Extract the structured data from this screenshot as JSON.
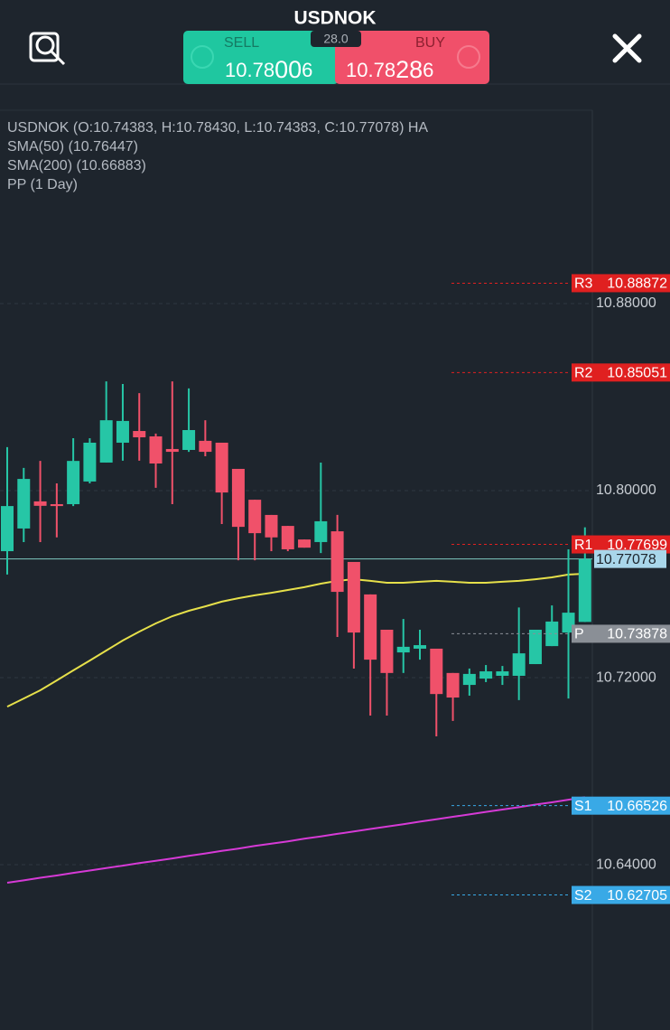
{
  "header": {
    "title": "USDNOK",
    "spread": "28.0",
    "sell": {
      "label": "SELL",
      "price_main": "10.78",
      "price_big": "00",
      "price_pip": "6"
    },
    "buy": {
      "label": "BUY",
      "price_main": "10.78",
      "price_big": "28",
      "price_pip": "6"
    }
  },
  "chart": {
    "type": "candlestick",
    "legend": [
      "USDNOK (O:10.74383, H:10.78430, L:10.74383, C:10.77078) HA",
      "SMA(50) (10.76447)",
      "SMA(200) (10.66883)",
      "PP (1 Day)"
    ],
    "up_color": "#26c6a6",
    "down_color": "#f0516a",
    "grid": true,
    "ylim": [
      10.5693,
      10.9627
    ],
    "yticks": [
      {
        "value": 10.88,
        "label": "10.88000"
      },
      {
        "value": 10.8,
        "label": "10.80000"
      },
      {
        "value": 10.72,
        "label": "10.72000"
      },
      {
        "value": 10.64,
        "label": "10.64000"
      }
    ],
    "candles": [
      {
        "open": 10.7741,
        "high": 10.8186,
        "low": 10.7641,
        "close": 10.7934
      },
      {
        "open": 10.7838,
        "high": 10.8097,
        "low": 10.778,
        "close": 10.805
      },
      {
        "open": 10.7954,
        "high": 10.8127,
        "low": 10.778,
        "close": 10.7935
      },
      {
        "open": 10.7942,
        "high": 10.8031,
        "low": 10.78,
        "close": 10.7934
      },
      {
        "open": 10.7942,
        "high": 10.8224,
        "low": 10.7934,
        "close": 10.8127
      },
      {
        "open": 10.8039,
        "high": 10.8224,
        "low": 10.8031,
        "close": 10.8205
      },
      {
        "open": 10.812,
        "high": 10.8467,
        "low": 10.812,
        "close": 10.8301
      },
      {
        "open": 10.8205,
        "high": 10.8456,
        "low": 10.8128,
        "close": 10.8298
      },
      {
        "open": 10.8255,
        "high": 10.8417,
        "low": 10.8128,
        "close": 10.8228
      },
      {
        "open": 10.8232,
        "high": 10.8244,
        "low": 10.8012,
        "close": 10.8116
      },
      {
        "open": 10.8178,
        "high": 10.8467,
        "low": 10.7942,
        "close": 10.8166
      },
      {
        "open": 10.8174,
        "high": 10.8437,
        "low": 10.8166,
        "close": 10.8259
      },
      {
        "open": 10.8213,
        "high": 10.8301,
        "low": 10.8147,
        "close": 10.8166
      },
      {
        "open": 10.8205,
        "high": 10.8205,
        "low": 10.7857,
        "close": 10.7992
      },
      {
        "open": 10.8093,
        "high": 10.8093,
        "low": 10.7702,
        "close": 10.7845
      },
      {
        "open": 10.7961,
        "high": 10.7961,
        "low": 10.7702,
        "close": 10.7818
      },
      {
        "open": 10.7896,
        "high": 10.7896,
        "low": 10.7741,
        "close": 10.78
      },
      {
        "open": 10.7849,
        "high": 10.7849,
        "low": 10.7741,
        "close": 10.7749
      },
      {
        "open": 10.7791,
        "high": 10.7791,
        "low": 10.7756,
        "close": 10.7756
      },
      {
        "open": 10.778,
        "high": 10.812,
        "low": 10.7733,
        "close": 10.7869
      },
      {
        "open": 10.7826,
        "high": 10.7896,
        "low": 10.7374,
        "close": 10.7567
      },
      {
        "open": 10.7695,
        "high": 10.7695,
        "low": 10.7239,
        "close": 10.7393
      },
      {
        "open": 10.7556,
        "high": 10.7556,
        "low": 10.7038,
        "close": 10.7277
      },
      {
        "open": 10.7405,
        "high": 10.7405,
        "low": 10.7038,
        "close": 10.722
      },
      {
        "open": 10.7308,
        "high": 10.7451,
        "low": 10.722,
        "close": 10.7332
      },
      {
        "open": 10.7324,
        "high": 10.7405,
        "low": 10.7277,
        "close": 10.7339
      },
      {
        "open": 10.7324,
        "high": 10.7324,
        "low": 10.6949,
        "close": 10.713
      },
      {
        "open": 10.722,
        "high": 10.722,
        "low": 10.7015,
        "close": 10.7115
      },
      {
        "open": 10.7169,
        "high": 10.7239,
        "low": 10.7123,
        "close": 10.7216
      },
      {
        "open": 10.7196,
        "high": 10.7254,
        "low": 10.7181,
        "close": 10.7227
      },
      {
        "open": 10.7208,
        "high": 10.725,
        "low": 10.7169,
        "close": 10.7227
      },
      {
        "open": 10.7208,
        "high": 10.75,
        "low": 10.7104,
        "close": 10.7304
      },
      {
        "open": 10.7258,
        "high": 10.7405,
        "low": 10.7258,
        "close": 10.7405
      },
      {
        "open": 10.7335,
        "high": 10.7509,
        "low": 10.7335,
        "close": 10.744
      },
      {
        "open": 10.7393,
        "high": 10.7749,
        "low": 10.7111,
        "close": 10.7478
      },
      {
        "open": 10.74383,
        "high": 10.7843,
        "low": 10.74383,
        "close": 10.77078
      }
    ],
    "lines": [
      {
        "color": "#e6e04a",
        "values": [
          10.7076,
          10.7111,
          10.7146,
          10.7188,
          10.7231,
          10.7273,
          10.7316,
          10.7359,
          10.7397,
          10.7432,
          10.7463,
          10.7486,
          10.7505,
          10.7525,
          10.754,
          10.7552,
          10.7563,
          10.7575,
          10.7587,
          10.7602,
          10.7614,
          10.7621,
          10.7614,
          10.7606,
          10.7606,
          10.761,
          10.7614,
          10.761,
          10.7606,
          10.7606,
          10.761,
          10.7614,
          10.7621,
          10.7629,
          10.7641,
          10.76447
        ]
      },
      {
        "color": "#d63ad6",
        "values": [
          10.6323,
          10.6333,
          10.6344,
          10.6354,
          10.6365,
          10.6375,
          10.6386,
          10.6396,
          10.6407,
          10.6417,
          10.6427,
          10.6438,
          10.6448,
          10.6459,
          10.6469,
          10.648,
          10.649,
          10.65,
          10.6511,
          10.6521,
          10.6532,
          10.6542,
          10.6553,
          10.6563,
          10.6573,
          10.6584,
          10.6594,
          10.6605,
          10.6615,
          10.6626,
          10.6636,
          10.6646,
          10.6657,
          10.6667,
          10.6678,
          10.66883
        ]
      }
    ],
    "pivots": [
      {
        "name": "R3",
        "value": 10.88872,
        "label": "10.88872",
        "color": "#e02020"
      },
      {
        "name": "R2",
        "value": 10.85051,
        "label": "10.85051",
        "color": "#e02020"
      },
      {
        "name": "R1",
        "value": 10.77699,
        "label": "10.77699",
        "color": "#e02020"
      },
      {
        "name": "P",
        "value": 10.73878,
        "label": "10.73878",
        "color": "#8a8f96"
      },
      {
        "name": "S1",
        "value": 10.66526,
        "label": "10.66526",
        "color": "#39a9e6"
      },
      {
        "name": "S2",
        "value": 10.62705,
        "label": "10.62705",
        "color": "#39a9e6"
      }
    ],
    "last": {
      "value": 10.77078,
      "label": "10.77078",
      "color": "#a9d6ea"
    }
  }
}
